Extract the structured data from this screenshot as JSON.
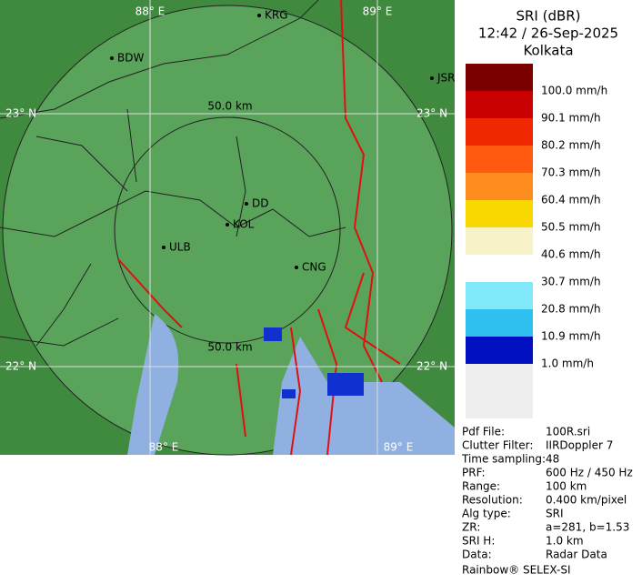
{
  "map": {
    "longitude_labels": [
      "88° E",
      "89° E",
      "88° E",
      "89° E"
    ],
    "latitude_labels": [
      "23° N",
      "23° N",
      "22° N",
      "22° N"
    ],
    "range_labels": [
      "50.0 km",
      "50.0 km"
    ],
    "places": [
      "KRG",
      "BDW",
      "JSR",
      "DD",
      "KOL",
      "ULB",
      "CNG"
    ]
  },
  "header": {
    "product": "SRI (dBR)",
    "time": "12:42 / 26-Sep-2025",
    "station": "Kolkata"
  },
  "legend": [
    {
      "label": "100.0 mm/h",
      "color": "#7a0000"
    },
    {
      "label": "90.1 mm/h",
      "color": "#c80000"
    },
    {
      "label": "80.2 mm/h",
      "color": "#f02800"
    },
    {
      "label": "70.3 mm/h",
      "color": "#ff5a10"
    },
    {
      "label": "60.4 mm/h",
      "color": "#ff8c1e"
    },
    {
      "label": "50.5 mm/h",
      "color": "#f8d800"
    },
    {
      "label": "40.6 mm/h",
      "color": "#f8f2c8"
    },
    {
      "label": "30.7 mm/h",
      "color": "#ffffff"
    },
    {
      "label": "20.8 mm/h",
      "color": "#80e8f8"
    },
    {
      "label": "10.9 mm/h",
      "color": "#30c0f0"
    },
    {
      "label": "1.0 mm/h",
      "color": "#1058e0"
    }
  ],
  "legend_last_color": "#0010c0",
  "info": [
    [
      "Pdf File:",
      "100R.sri"
    ],
    [
      "Clutter Filter:",
      "IIRDoppler 7"
    ],
    [
      "Time sampling:",
      "48"
    ],
    [
      "PRF:",
      "600 Hz / 450 Hz"
    ],
    [
      "Range:",
      "100 km"
    ],
    [
      "Resolution:",
      "0.400 km/pixel"
    ],
    [
      "Alg type:",
      "SRI"
    ],
    [
      "ZR:",
      "a=281, b=1.53"
    ],
    [
      "SRI H:",
      "1.0 km"
    ],
    [
      "Data:",
      "Radar Data"
    ]
  ],
  "footer": "Rainbow® SELEX-SI"
}
